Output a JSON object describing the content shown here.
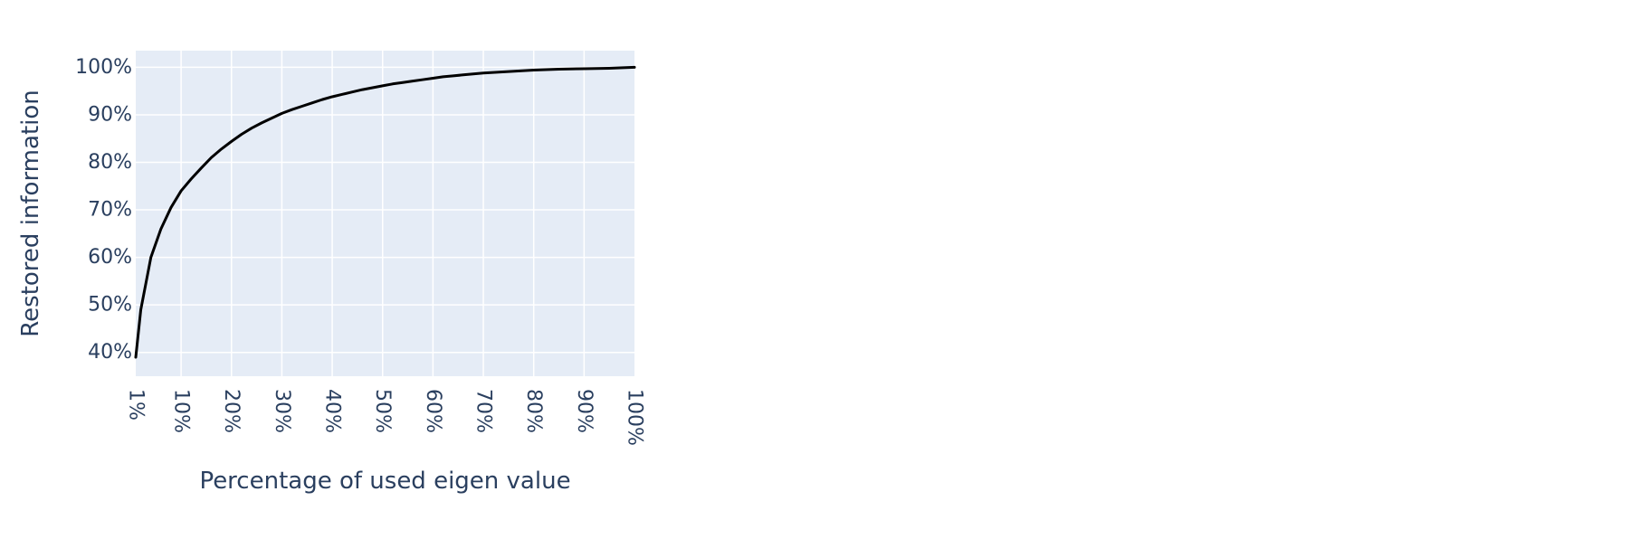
{
  "chart_data": {
    "type": "line",
    "title": "",
    "xlabel": "Percentage of used eigen value",
    "ylabel": "Restored information",
    "xlim": [
      1,
      100
    ],
    "ylim": [
      35,
      103.5
    ],
    "x_ticks": [
      1,
      10,
      20,
      30,
      40,
      50,
      60,
      70,
      80,
      90,
      100
    ],
    "x_tick_labels": [
      "1%",
      "10%",
      "20%",
      "30%",
      "40%",
      "50%",
      "60%",
      "70%",
      "80%",
      "90%",
      "100%"
    ],
    "y_ticks": [
      40,
      50,
      60,
      70,
      80,
      90,
      100
    ],
    "y_tick_labels": [
      "40%",
      "50%",
      "60%",
      "70%",
      "80%",
      "90%",
      "100%"
    ],
    "grid": true,
    "legend": false,
    "plot_bg_color": "#e5ecf6",
    "grid_color": "#ffffff",
    "text_color": "#2a3f5f",
    "series": [
      {
        "line_color": "#000000",
        "x": [
          1,
          2,
          4,
          6,
          8,
          10,
          12,
          14,
          16,
          18,
          20,
          22,
          24,
          26,
          28,
          30,
          32,
          34,
          36,
          38,
          40,
          42,
          44,
          46,
          48,
          50,
          52,
          54,
          56,
          58,
          60,
          62,
          64,
          66,
          68,
          70,
          75,
          80,
          85,
          90,
          95,
          100
        ],
        "y": [
          39,
          49,
          60,
          66,
          70.5,
          74,
          76.5,
          78.8,
          81,
          82.8,
          84.4,
          85.9,
          87.2,
          88.3,
          89.3,
          90.3,
          91.1,
          91.8,
          92.5,
          93.2,
          93.8,
          94.3,
          94.8,
          95.3,
          95.7,
          96.1,
          96.5,
          96.8,
          97.1,
          97.4,
          97.7,
          98,
          98.2,
          98.4,
          98.6,
          98.8,
          99.1,
          99.4,
          99.6,
          99.7,
          99.8,
          100
        ]
      }
    ]
  }
}
